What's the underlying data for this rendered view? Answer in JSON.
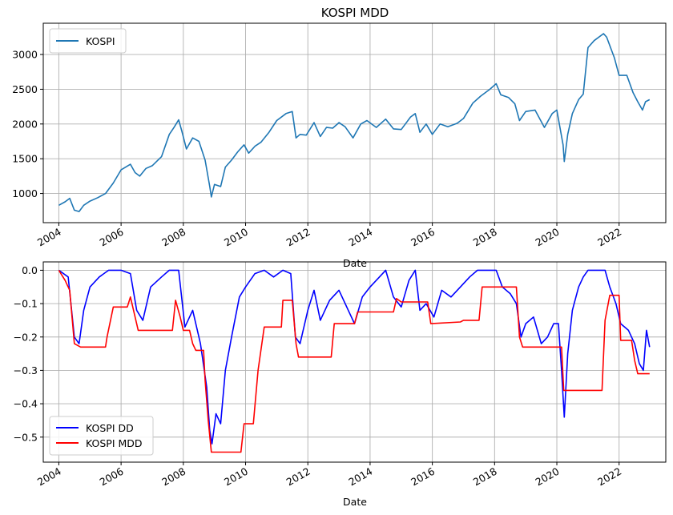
{
  "chart_data": [
    {
      "type": "line",
      "title": "KOSPI MDD",
      "xlabel": "Date",
      "ylabel": "",
      "x_tick_labels": [
        "2004",
        "2006",
        "2008",
        "2010",
        "2012",
        "2014",
        "2016",
        "2018",
        "2020",
        "2022"
      ],
      "y_tick_labels": [
        "1000",
        "1500",
        "2000",
        "2500",
        "3000"
      ],
      "xlim": [
        2003.5,
        2023.5
      ],
      "ylim": [
        580,
        3450
      ],
      "grid": true,
      "legend_position": "top-left",
      "series": [
        {
          "name": "KOSPI",
          "color": "#1f77b4",
          "points": [
            [
              2004.0,
              830
            ],
            [
              2004.2,
              880
            ],
            [
              2004.35,
              930
            ],
            [
              2004.5,
              760
            ],
            [
              2004.65,
              740
            ],
            [
              2004.8,
              830
            ],
            [
              2005.0,
              890
            ],
            [
              2005.25,
              940
            ],
            [
              2005.5,
              1000
            ],
            [
              2005.75,
              1150
            ],
            [
              2006.0,
              1340
            ],
            [
              2006.3,
              1420
            ],
            [
              2006.45,
              1300
            ],
            [
              2006.6,
              1250
            ],
            [
              2006.8,
              1360
            ],
            [
              2007.0,
              1400
            ],
            [
              2007.3,
              1530
            ],
            [
              2007.55,
              1850
            ],
            [
              2007.7,
              1950
            ],
            [
              2007.85,
              2060
            ],
            [
              2007.95,
              1900
            ],
            [
              2008.1,
              1640
            ],
            [
              2008.3,
              1800
            ],
            [
              2008.5,
              1750
            ],
            [
              2008.7,
              1480
            ],
            [
              2008.85,
              1100
            ],
            [
              2008.9,
              950
            ],
            [
              2009.0,
              1130
            ],
            [
              2009.2,
              1100
            ],
            [
              2009.35,
              1380
            ],
            [
              2009.55,
              1480
            ],
            [
              2009.75,
              1600
            ],
            [
              2009.95,
              1700
            ],
            [
              2010.1,
              1580
            ],
            [
              2010.3,
              1680
            ],
            [
              2010.5,
              1740
            ],
            [
              2010.75,
              1880
            ],
            [
              2011.0,
              2050
            ],
            [
              2011.3,
              2150
            ],
            [
              2011.5,
              2180
            ],
            [
              2011.62,
              1800
            ],
            [
              2011.75,
              1850
            ],
            [
              2011.95,
              1840
            ],
            [
              2012.2,
              2020
            ],
            [
              2012.4,
              1820
            ],
            [
              2012.6,
              1950
            ],
            [
              2012.8,
              1940
            ],
            [
              2013.0,
              2020
            ],
            [
              2013.2,
              1960
            ],
            [
              2013.45,
              1800
            ],
            [
              2013.7,
              2000
            ],
            [
              2013.9,
              2050
            ],
            [
              2014.2,
              1950
            ],
            [
              2014.5,
              2070
            ],
            [
              2014.75,
              1930
            ],
            [
              2015.0,
              1920
            ],
            [
              2015.3,
              2100
            ],
            [
              2015.45,
              2150
            ],
            [
              2015.6,
              1880
            ],
            [
              2015.8,
              2000
            ],
            [
              2016.0,
              1850
            ],
            [
              2016.25,
              2000
            ],
            [
              2016.5,
              1960
            ],
            [
              2016.8,
              2010
            ],
            [
              2017.0,
              2080
            ],
            [
              2017.3,
              2300
            ],
            [
              2017.55,
              2400
            ],
            [
              2017.85,
              2500
            ],
            [
              2018.05,
              2580
            ],
            [
              2018.2,
              2420
            ],
            [
              2018.45,
              2380
            ],
            [
              2018.65,
              2290
            ],
            [
              2018.8,
              2050
            ],
            [
              2019.0,
              2180
            ],
            [
              2019.3,
              2200
            ],
            [
              2019.6,
              1950
            ],
            [
              2019.85,
              2150
            ],
            [
              2020.0,
              2200
            ],
            [
              2020.2,
              1700
            ],
            [
              2020.24,
              1460
            ],
            [
              2020.35,
              1850
            ],
            [
              2020.5,
              2150
            ],
            [
              2020.7,
              2350
            ],
            [
              2020.85,
              2430
            ],
            [
              2021.0,
              3100
            ],
            [
              2021.2,
              3200
            ],
            [
              2021.5,
              3300
            ],
            [
              2021.6,
              3250
            ],
            [
              2021.85,
              2950
            ],
            [
              2022.0,
              2700
            ],
            [
              2022.25,
              2700
            ],
            [
              2022.45,
              2450
            ],
            [
              2022.6,
              2320
            ],
            [
              2022.75,
              2200
            ],
            [
              2022.85,
              2320
            ],
            [
              2022.98,
              2350
            ]
          ]
        }
      ]
    },
    {
      "type": "line",
      "title": "",
      "xlabel": "Date",
      "ylabel": "",
      "x_tick_labels": [
        "2004",
        "2006",
        "2008",
        "2010",
        "2012",
        "2014",
        "2016",
        "2018",
        "2020",
        "2022"
      ],
      "y_tick_labels": [
        "0.0",
        "−0.1",
        "−0.2",
        "−0.3",
        "−0.4",
        "−0.5"
      ],
      "xlim": [
        2003.5,
        2023.5
      ],
      "ylim": [
        -0.575,
        0.025
      ],
      "grid": true,
      "legend_position": "bottom-left",
      "series": [
        {
          "name": "KOSPI DD",
          "color": "#0000ff",
          "points": [
            [
              2004.0,
              0.0
            ],
            [
              2004.3,
              -0.02
            ],
            [
              2004.5,
              -0.2
            ],
            [
              2004.65,
              -0.22
            ],
            [
              2004.8,
              -0.12
            ],
            [
              2005.0,
              -0.05
            ],
            [
              2005.3,
              -0.02
            ],
            [
              2005.6,
              0.0
            ],
            [
              2006.0,
              0.0
            ],
            [
              2006.3,
              -0.01
            ],
            [
              2006.5,
              -0.12
            ],
            [
              2006.7,
              -0.15
            ],
            [
              2006.95,
              -0.05
            ],
            [
              2007.3,
              -0.02
            ],
            [
              2007.55,
              0.0
            ],
            [
              2007.85,
              0.0
            ],
            [
              2008.05,
              -0.17
            ],
            [
              2008.3,
              -0.12
            ],
            [
              2008.55,
              -0.22
            ],
            [
              2008.75,
              -0.35
            ],
            [
              2008.85,
              -0.48
            ],
            [
              2008.92,
              -0.52
            ],
            [
              2009.05,
              -0.43
            ],
            [
              2009.2,
              -0.46
            ],
            [
              2009.35,
              -0.3
            ],
            [
              2009.55,
              -0.2
            ],
            [
              2009.8,
              -0.08
            ],
            [
              2010.0,
              -0.05
            ],
            [
              2010.3,
              -0.01
            ],
            [
              2010.6,
              0.0
            ],
            [
              2010.9,
              -0.02
            ],
            [
              2011.2,
              0.0
            ],
            [
              2011.45,
              -0.01
            ],
            [
              2011.6,
              -0.2
            ],
            [
              2011.75,
              -0.22
            ],
            [
              2012.0,
              -0.12
            ],
            [
              2012.2,
              -0.06
            ],
            [
              2012.4,
              -0.15
            ],
            [
              2012.7,
              -0.09
            ],
            [
              2013.0,
              -0.06
            ],
            [
              2013.3,
              -0.12
            ],
            [
              2013.5,
              -0.16
            ],
            [
              2013.75,
              -0.08
            ],
            [
              2014.0,
              -0.05
            ],
            [
              2014.3,
              -0.02
            ],
            [
              2014.5,
              0.0
            ],
            [
              2014.75,
              -0.08
            ],
            [
              2015.0,
              -0.11
            ],
            [
              2015.25,
              -0.03
            ],
            [
              2015.45,
              0.0
            ],
            [
              2015.6,
              -0.12
            ],
            [
              2015.8,
              -0.1
            ],
            [
              2016.05,
              -0.14
            ],
            [
              2016.3,
              -0.06
            ],
            [
              2016.6,
              -0.08
            ],
            [
              2016.9,
              -0.05
            ],
            [
              2017.2,
              -0.02
            ],
            [
              2017.45,
              0.0
            ],
            [
              2017.8,
              0.0
            ],
            [
              2018.05,
              0.0
            ],
            [
              2018.25,
              -0.05
            ],
            [
              2018.5,
              -0.07
            ],
            [
              2018.7,
              -0.1
            ],
            [
              2018.85,
              -0.2
            ],
            [
              2019.0,
              -0.16
            ],
            [
              2019.25,
              -0.14
            ],
            [
              2019.5,
              -0.22
            ],
            [
              2019.7,
              -0.2
            ],
            [
              2019.9,
              -0.16
            ],
            [
              2020.05,
              -0.16
            ],
            [
              2020.15,
              -0.3
            ],
            [
              2020.24,
              -0.44
            ],
            [
              2020.35,
              -0.25
            ],
            [
              2020.5,
              -0.12
            ],
            [
              2020.7,
              -0.05
            ],
            [
              2020.85,
              -0.02
            ],
            [
              2021.0,
              0.0
            ],
            [
              2021.3,
              0.0
            ],
            [
              2021.55,
              0.0
            ],
            [
              2021.7,
              -0.05
            ],
            [
              2021.9,
              -0.1
            ],
            [
              2022.05,
              -0.16
            ],
            [
              2022.3,
              -0.18
            ],
            [
              2022.5,
              -0.22
            ],
            [
              2022.65,
              -0.28
            ],
            [
              2022.78,
              -0.3
            ],
            [
              2022.88,
              -0.18
            ],
            [
              2022.98,
              -0.23
            ]
          ]
        },
        {
          "name": "KOSPI MDD",
          "color": "#ff0000",
          "points": [
            [
              2004.0,
              0.0
            ],
            [
              2004.2,
              -0.03
            ],
            [
              2004.35,
              -0.06
            ],
            [
              2004.5,
              -0.22
            ],
            [
              2004.7,
              -0.23
            ],
            [
              2005.5,
              -0.23
            ],
            [
              2005.55,
              -0.2
            ],
            [
              2005.75,
              -0.11
            ],
            [
              2006.2,
              -0.11
            ],
            [
              2006.3,
              -0.08
            ],
            [
              2006.55,
              -0.18
            ],
            [
              2007.65,
              -0.18
            ],
            [
              2007.75,
              -0.09
            ],
            [
              2007.9,
              -0.14
            ],
            [
              2008.0,
              -0.18
            ],
            [
              2008.2,
              -0.18
            ],
            [
              2008.3,
              -0.22
            ],
            [
              2008.4,
              -0.24
            ],
            [
              2008.65,
              -0.24
            ],
            [
              2008.7,
              -0.33
            ],
            [
              2008.8,
              -0.45
            ],
            [
              2008.9,
              -0.545
            ],
            [
              2009.85,
              -0.545
            ],
            [
              2009.95,
              -0.46
            ],
            [
              2010.25,
              -0.46
            ],
            [
              2010.4,
              -0.3
            ],
            [
              2010.6,
              -0.17
            ],
            [
              2011.15,
              -0.17
            ],
            [
              2011.2,
              -0.09
            ],
            [
              2011.5,
              -0.09
            ],
            [
              2011.62,
              -0.22
            ],
            [
              2011.7,
              -0.26
            ],
            [
              2012.75,
              -0.26
            ],
            [
              2012.85,
              -0.16
            ],
            [
              2013.5,
              -0.16
            ],
            [
              2013.6,
              -0.125
            ],
            [
              2014.75,
              -0.125
            ],
            [
              2014.85,
              -0.085
            ],
            [
              2015.0,
              -0.095
            ],
            [
              2015.85,
              -0.095
            ],
            [
              2015.95,
              -0.16
            ],
            [
              2016.9,
              -0.155
            ],
            [
              2017.0,
              -0.15
            ],
            [
              2017.5,
              -0.15
            ],
            [
              2017.6,
              -0.05
            ],
            [
              2018.7,
              -0.05
            ],
            [
              2018.8,
              -0.2
            ],
            [
              2018.9,
              -0.23
            ],
            [
              2020.15,
              -0.23
            ],
            [
              2020.22,
              -0.36
            ],
            [
              2021.45,
              -0.36
            ],
            [
              2021.55,
              -0.15
            ],
            [
              2021.7,
              -0.075
            ],
            [
              2022.0,
              -0.075
            ],
            [
              2022.05,
              -0.21
            ],
            [
              2022.4,
              -0.21
            ],
            [
              2022.5,
              -0.27
            ],
            [
              2022.6,
              -0.31
            ],
            [
              2022.98,
              -0.31
            ]
          ]
        }
      ]
    }
  ]
}
